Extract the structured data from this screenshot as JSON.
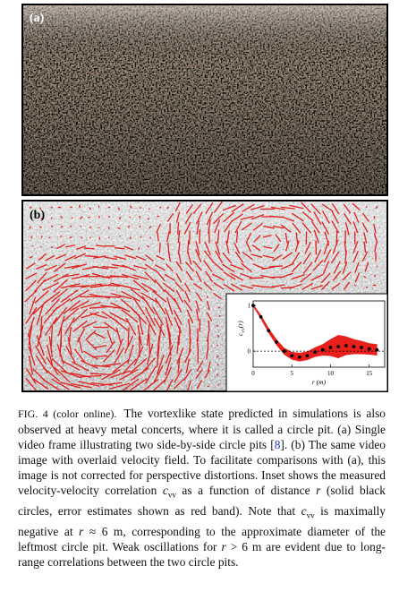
{
  "panels": {
    "a": "(a)",
    "b": "(b)"
  },
  "chart_data": {
    "type": "line",
    "xlabel": "r (m)",
    "ylabel": {
      "main": "c",
      "sub": "vv",
      "arg": "(r)"
    },
    "x": [
      0,
      1,
      2,
      3,
      4,
      5,
      6,
      7,
      8,
      9,
      10,
      11,
      12,
      13,
      14,
      15,
      16
    ],
    "series": [
      {
        "color": "#000000",
        "values": [
          1.0,
          0.75,
          0.45,
          0.2,
          0.0,
          -0.1,
          -0.13,
          -0.1,
          -0.02,
          0.03,
          0.08,
          0.1,
          0.12,
          0.1,
          0.08,
          0.05,
          0.03
        ],
        "error": [
          0.02,
          0.04,
          0.05,
          0.06,
          0.07,
          0.08,
          0.09,
          0.09,
          0.1,
          0.12,
          0.18,
          0.25,
          0.2,
          0.16,
          0.14,
          0.12,
          0.12
        ],
        "band_color": "#e8201c"
      }
    ],
    "xlim": [
      0,
      17
    ],
    "ylim": [
      -0.35,
      1.1
    ],
    "xticks": [
      0,
      5,
      10,
      15
    ],
    "yticks": [
      0,
      1
    ]
  },
  "caption": [
    "FIG. 4 (color online).",
    "The vortexlike state predicted in simulations is also observed at heavy metal concerts, where it is called a circle pit. (a) Single video frame illustrating two side-by-side circle pits [",
    "8",
    "]. (b) The same video image with overlaid velocity field. To facilitate comparisons with (a), this image is not corrected for perspective distortions. Inset shows the measured velocity-velocity correlation ",
    "c",
    "vv",
    " as a function of distance ",
    "r",
    " (solid black circles, error estimates shown as red band). Note that ",
    "c",
    "vv",
    " is maximally negative at ",
    "r",
    " ≈ 6 m, corresponding to the approximate diameter of the leftmost circle pit. Weak oscillations for ",
    "r",
    " > 6 m are evident due to long-range correlations between the two circle pits."
  ]
}
